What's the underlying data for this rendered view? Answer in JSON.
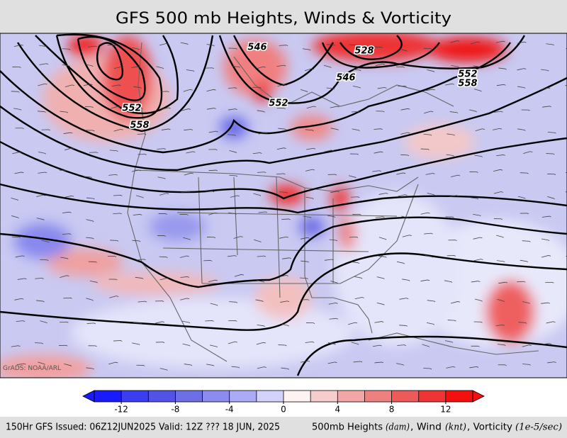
{
  "header": {
    "title": "GFS 500 mb Heights, Winds & Vorticity"
  },
  "map": {
    "credit": "GrADS: NOAA/ARL",
    "contour_labels": [
      "546",
      "528",
      "546",
      "552",
      "558",
      "552",
      "552",
      "558"
    ]
  },
  "colorbar": {
    "lim": [
      -14,
      14
    ],
    "colors": [
      "#1a1aff",
      "#3c3cf0",
      "#5252e6",
      "#6e6ee6",
      "#8c8cf0",
      "#aaaaf5",
      "#d2d2fa",
      "#fff2f2",
      "#f7cccc",
      "#f2a6a6",
      "#ee8080",
      "#ec5a5a",
      "#ee3434",
      "#f51010"
    ],
    "ticks": [
      -12,
      -8,
      -4,
      0,
      4,
      8,
      12
    ]
  },
  "footer": {
    "left": "150Hr GFS Issued: 06Z12JUN2025 Valid: 12Z ??? 18 JUN, 2025",
    "right": [
      "500mb Heights",
      "(dam)",
      ", Wind",
      "(knt)",
      ", Vorticity",
      "(1e-5/sec)"
    ]
  }
}
